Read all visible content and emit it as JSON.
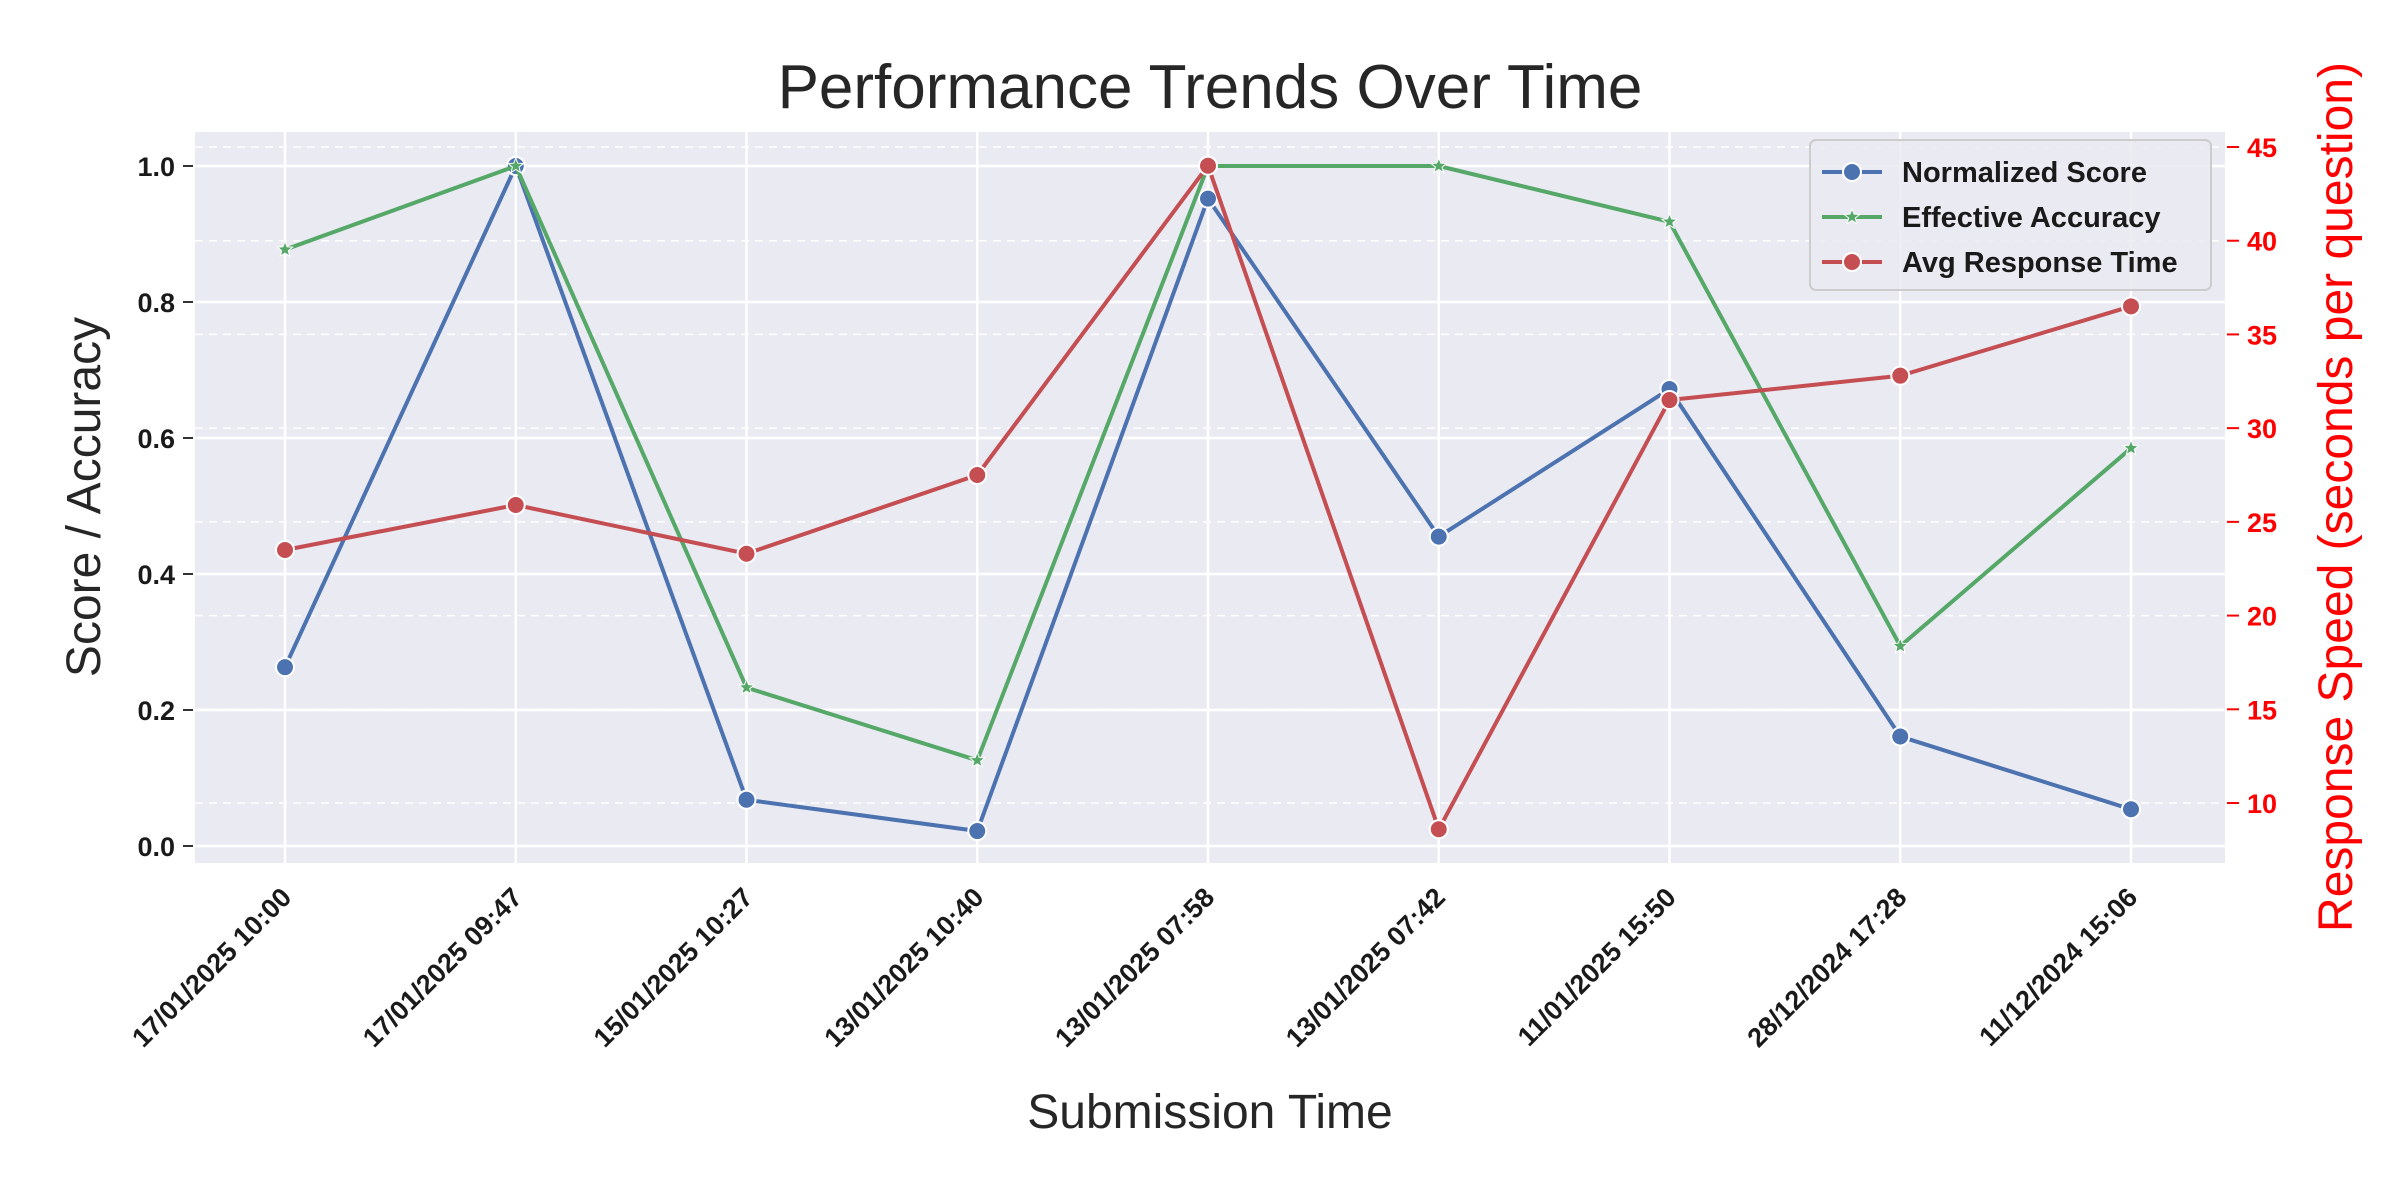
{
  "chart_data": {
    "type": "line",
    "title": "Performance Trends Over Time",
    "xlabel": "Submission Time",
    "ylabel": "Score / Accuracy",
    "ylabel_right": "Response Speed (seconds per question)",
    "categories": [
      "17/01/2025 10:00",
      "17/01/2025 09:47",
      "15/01/2025 10:27",
      "13/01/2025 10:40",
      "13/01/2025 07:58",
      "13/01/2025 07:42",
      "11/01/2025 15:50",
      "28/12/2024 17:28",
      "11/12/2024 15:06"
    ],
    "ylim": [
      -0.025,
      1.05
    ],
    "yticks": [
      0.0,
      0.2,
      0.4,
      0.6,
      0.8,
      1.0
    ],
    "ylim_right": [
      6.8,
      45.8
    ],
    "yticks_right": [
      10,
      15,
      20,
      25,
      30,
      35,
      40,
      45
    ],
    "grid": true,
    "legend_position": "top-right",
    "series": [
      {
        "name": "Normalized Score",
        "axis": "left",
        "color": "#4c72b0",
        "marker": "circle",
        "values": [
          0.263,
          1.0,
          0.068,
          0.022,
          0.952,
          0.455,
          0.672,
          0.161,
          0.054
        ]
      },
      {
        "name": "Effective Accuracy",
        "axis": "left",
        "color": "#55a868",
        "marker": "star",
        "values": [
          0.877,
          1.0,
          0.233,
          0.126,
          1.0,
          1.0,
          0.918,
          0.294,
          0.585
        ]
      },
      {
        "name": "Avg Response Time",
        "axis": "right",
        "color": "#c44e52",
        "marker": "circle",
        "values": [
          23.5,
          25.9,
          23.3,
          27.5,
          44.0,
          8.6,
          31.5,
          32.8,
          36.5
        ]
      }
    ],
    "right_axis_color": "#ff0000"
  }
}
